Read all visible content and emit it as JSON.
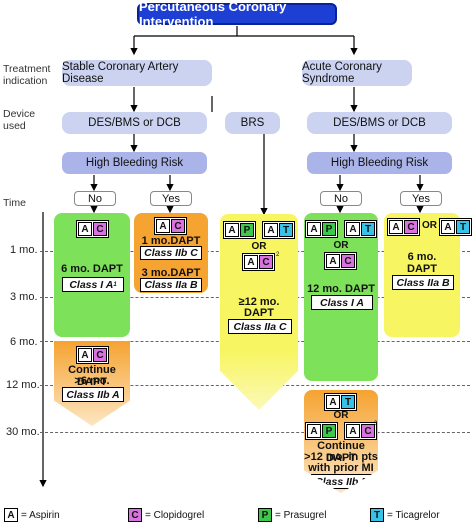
{
  "title": "Percutaneous Coronary Intervention",
  "side_labels": {
    "treatment": "Treatment indication",
    "device": "Device used",
    "time": "Time"
  },
  "indications": {
    "stable": "Stable Coronary Artery Disease",
    "acute": "Acute Coronary Syndrome"
  },
  "devices": {
    "left": "DES/BMS or DCB",
    "middle": "BRS",
    "right": "DES/BMS or DCB"
  },
  "hbr": {
    "left": "High Bleeding Risk",
    "right": "High Bleeding Risk"
  },
  "answers": {
    "no": "No",
    "yes": "Yes"
  },
  "ticks": [
    "1 mo.",
    "3 mo.",
    "6 mo.",
    "12 mo.",
    "30 mo."
  ],
  "drugs": {
    "A": "A",
    "C": "C",
    "P": "P",
    "T": "T"
  },
  "or_text": "OR",
  "sup1": "1",
  "sup2": "2",
  "sup3": "3",
  "boxes": {
    "scad_no_text": "6 mo. DAPT",
    "scad_no_class": "Class I A",
    "scad_no_cont_text1": "Continue DAPT",
    "scad_no_cont_text2": ">6 mo.",
    "scad_no_cont_class": "Class IIb A",
    "scad_yes_1_text": "1 mo.DAPT",
    "scad_yes_1_class": "Class IIb C",
    "scad_yes_3_text": "3 mo.DAPT",
    "scad_yes_3_class": "Class IIa B",
    "brs_text1": "≥12 mo.",
    "brs_text2": "DAPT",
    "brs_class": "Class IIa C",
    "acs_no_text": "12 mo. DAPT",
    "acs_no_class": "Class I A",
    "acs_no_cont_text1": "Continue DAPT",
    "acs_no_cont_text2": ">12 mo. in pts",
    "acs_no_cont_text3": "with prior MI",
    "acs_no_cont_class": "Class IIb B",
    "acs_yes_text1": "6 mo.",
    "acs_yes_text2": "DAPT",
    "acs_yes_class": "Class IIa B"
  },
  "legend": [
    {
      "key": "A",
      "label": "= Aspirin",
      "color": "#ffffff"
    },
    {
      "key": "C",
      "label": "= Clopidogrel",
      "color": "#d873e0"
    },
    {
      "key": "P",
      "label": "= Prasugrel",
      "color": "#3cc94b"
    },
    {
      "key": "T",
      "label": "= Ticagrelor",
      "color": "#38c2e8"
    }
  ]
}
